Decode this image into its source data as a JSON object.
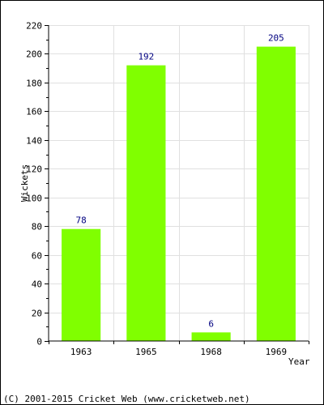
{
  "chart_data": {
    "type": "bar",
    "categories": [
      "1963",
      "1965",
      "1968",
      "1969"
    ],
    "values": [
      78,
      192,
      6,
      205
    ],
    "data_labels": [
      "78",
      "192",
      "6",
      "205"
    ],
    "xlabel": "Year",
    "ylabel": "Wickets",
    "ylim": [
      0,
      220
    ],
    "yticks": [
      0,
      20,
      40,
      60,
      80,
      100,
      120,
      140,
      160,
      180,
      200,
      220
    ],
    "ytick_labels": [
      "0",
      "20",
      "40",
      "60",
      "80",
      "100",
      "120",
      "140",
      "160",
      "180",
      "200",
      "220"
    ],
    "grid": true,
    "legend": "none",
    "bar_color": "#80ff00",
    "label_color": "#000080",
    "grid_color": "#e0e0e0"
  },
  "footer": {
    "copyright": "(C) 2001-2015 Cricket Web (www.cricketweb.net)"
  }
}
